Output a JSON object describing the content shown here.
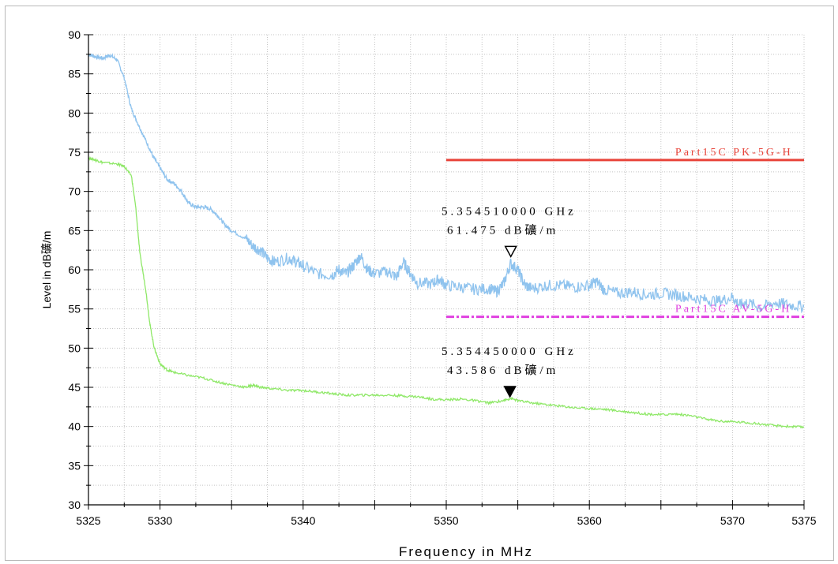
{
  "chart_data": {
    "type": "line",
    "xlabel": "Frequency in MHz",
    "ylabel": "Level in dB礦/m",
    "xlim": [
      5325,
      5375
    ],
    "ylim": [
      30,
      90
    ],
    "x_major_ticks": [
      5325,
      5330,
      5340,
      5350,
      5360,
      5370,
      5375
    ],
    "y_ticks": [
      30,
      35,
      40,
      45,
      50,
      55,
      60,
      65,
      70,
      75,
      80,
      85,
      90
    ],
    "grid": true,
    "series": [
      {
        "color": "#8fc3ee",
        "points": [
          [
            5325,
            87.5
          ],
          [
            5325.5,
            87.2
          ],
          [
            5326,
            87.0
          ],
          [
            5326.5,
            87.4
          ],
          [
            5327,
            86.8
          ],
          [
            5327.5,
            84.5
          ],
          [
            5328,
            80.5
          ],
          [
            5328.5,
            78.5
          ],
          [
            5329,
            76.5
          ],
          [
            5329.5,
            74.5
          ],
          [
            5330,
            73.0
          ],
          [
            5330.5,
            71.5
          ],
          [
            5331,
            71.0
          ],
          [
            5331.5,
            70.0
          ],
          [
            5332,
            68.5
          ],
          [
            5332.5,
            68.0
          ],
          [
            5333,
            68.0
          ],
          [
            5333.5,
            67.8
          ],
          [
            5334,
            67.0
          ],
          [
            5334.5,
            65.8
          ],
          [
            5335,
            65.0
          ],
          [
            5336,
            64.0
          ],
          [
            5336.5,
            63.0
          ],
          [
            5337,
            62.5
          ],
          [
            5337.5,
            61.5
          ],
          [
            5338,
            61.0
          ],
          [
            5339,
            61.5
          ],
          [
            5339.5,
            61.0
          ],
          [
            5340,
            60.5
          ],
          [
            5341,
            59.5
          ],
          [
            5342,
            59.3
          ],
          [
            5342.5,
            60.0
          ],
          [
            5343,
            59.5
          ],
          [
            5343.5,
            60.5
          ],
          [
            5344,
            61.8
          ],
          [
            5344.5,
            60.0
          ],
          [
            5345,
            59.5
          ],
          [
            5346,
            59.8
          ],
          [
            5346.5,
            59.0
          ],
          [
            5347,
            61.0
          ],
          [
            5347.5,
            59.5
          ],
          [
            5348,
            58.3
          ],
          [
            5349,
            58.2
          ],
          [
            5349.5,
            58.8
          ],
          [
            5350,
            58.0
          ],
          [
            5351,
            57.8
          ],
          [
            5352,
            57.5
          ],
          [
            5353,
            57.6
          ],
          [
            5353.5,
            57.2
          ],
          [
            5354,
            58.2
          ],
          [
            5354.5,
            60.8
          ],
          [
            5355,
            60.0
          ],
          [
            5355.5,
            58.0
          ],
          [
            5356,
            57.6
          ],
          [
            5357,
            58.0
          ],
          [
            5358,
            58.0
          ],
          [
            5359,
            57.8
          ],
          [
            5360,
            58.0
          ],
          [
            5360.5,
            58.5
          ],
          [
            5361,
            57.5
          ],
          [
            5362,
            57.0
          ],
          [
            5363,
            57.2
          ],
          [
            5364,
            56.8
          ],
          [
            5365,
            57.0
          ],
          [
            5366,
            56.8
          ],
          [
            5367,
            56.5
          ],
          [
            5368,
            56.2
          ],
          [
            5369,
            56.0
          ],
          [
            5370,
            56.5
          ],
          [
            5370.5,
            55.5
          ],
          [
            5371,
            55.8
          ],
          [
            5372,
            55.2
          ],
          [
            5373,
            55.8
          ],
          [
            5374,
            55.5
          ],
          [
            5375,
            55.3
          ]
        ]
      },
      {
        "color": "#8fe868",
        "points": [
          [
            5325,
            74.3
          ],
          [
            5325.5,
            74.0
          ],
          [
            5326,
            73.7
          ],
          [
            5327,
            73.5
          ],
          [
            5327.5,
            73.2
          ],
          [
            5328,
            72.0
          ],
          [
            5328.3,
            68.0
          ],
          [
            5328.6,
            62.0
          ],
          [
            5329,
            57.5
          ],
          [
            5329.3,
            53.0
          ],
          [
            5329.6,
            50.0
          ],
          [
            5330,
            48.0
          ],
          [
            5330.5,
            47.2
          ],
          [
            5331,
            46.9
          ],
          [
            5332,
            46.5
          ],
          [
            5333,
            46.2
          ],
          [
            5334,
            45.7
          ],
          [
            5335,
            45.3
          ],
          [
            5336,
            45.0
          ],
          [
            5336.5,
            45.3
          ],
          [
            5337,
            45.0
          ],
          [
            5338,
            44.8
          ],
          [
            5339,
            44.6
          ],
          [
            5340,
            44.6
          ],
          [
            5341,
            44.4
          ],
          [
            5342,
            44.2
          ],
          [
            5343,
            44.0
          ],
          [
            5344,
            44.0
          ],
          [
            5345,
            44.0
          ],
          [
            5346,
            44.0
          ],
          [
            5347,
            43.9
          ],
          [
            5348,
            43.8
          ],
          [
            5349,
            43.5
          ],
          [
            5350,
            43.4
          ],
          [
            5351,
            43.5
          ],
          [
            5352,
            43.3
          ],
          [
            5353,
            43.0
          ],
          [
            5354,
            43.3
          ],
          [
            5354.5,
            43.6
          ],
          [
            5355,
            43.3
          ],
          [
            5356,
            43.0
          ],
          [
            5357,
            42.8
          ],
          [
            5358,
            42.6
          ],
          [
            5359,
            42.4
          ],
          [
            5360,
            42.3
          ],
          [
            5361,
            42.2
          ],
          [
            5362,
            42.0
          ],
          [
            5363,
            41.8
          ],
          [
            5364,
            41.6
          ],
          [
            5365,
            41.5
          ],
          [
            5366,
            41.6
          ],
          [
            5367,
            41.4
          ],
          [
            5368,
            41.0
          ],
          [
            5369,
            40.7
          ],
          [
            5370,
            40.6
          ],
          [
            5371,
            40.5
          ],
          [
            5372,
            40.3
          ],
          [
            5373,
            40.1
          ],
          [
            5374,
            40.0
          ],
          [
            5375,
            39.9
          ]
        ]
      }
    ],
    "limit_lines": [
      {
        "label": "Part15C PK-5G-H",
        "value": 74.0,
        "x_start": 5350,
        "x_end": 5375,
        "color": "#e8443a",
        "style": "solid"
      },
      {
        "label": "Part15C AV-5G-H",
        "value": 54.0,
        "x_start": 5350,
        "x_end": 5375,
        "color": "#e040e0",
        "style": "dashdot"
      }
    ],
    "markers": [
      {
        "frequency_text": "5.354510000 GHz",
        "level_text": "61.475 dB礦/m",
        "x": 5354.51,
        "y": 61.475,
        "filled": false
      },
      {
        "frequency_text": "5.354450000 GHz",
        "level_text": "43.586 dB礦/m",
        "x": 5354.45,
        "y": 43.586,
        "filled": true
      }
    ]
  }
}
